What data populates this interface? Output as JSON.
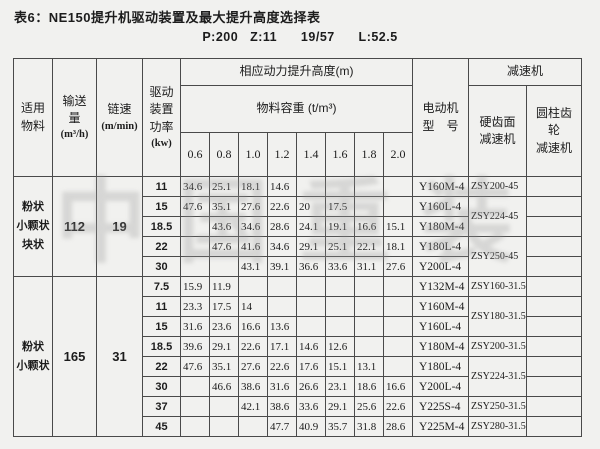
{
  "page": {
    "title": "表6：NE150提升机驱动装置及最大提升高度选择表",
    "subtitle": "P:200   Z:11      19/57      L:52.5",
    "watermark": "中国重装"
  },
  "colors": {
    "background": "#f1f1ef",
    "border": "#4a4a4a",
    "text": "#1c1c1c",
    "watermark": "#9a9a9a"
  },
  "table": {
    "headers": {
      "material": "适用\n物料",
      "capacity": "输送\n量",
      "capacity_unit": "(m³/h)",
      "chain_speed": "链速",
      "chain_speed_unit": "(m/min)",
      "drive_power": "驱动\n装置\n功率",
      "drive_power_unit": "(kw)",
      "lift_height": "相应动力提升高度(m)",
      "bulk_density": "物料容重 (t/m³)",
      "motor_model": "电动机\n型　号",
      "reducer": "减速机",
      "hard_tooth_reducer": "硬齿面\n减速机",
      "cylindrical_reducer": "圆柱齿\n轮\n减速机"
    },
    "density_values": [
      "0.6",
      "0.8",
      "1.0",
      "1.2",
      "1.4",
      "1.6",
      "1.8",
      "2.0"
    ],
    "groups": [
      {
        "material": "粉状\n小颗状\n块状",
        "capacity": "112",
        "chain_speed": "19",
        "rows": [
          {
            "power": "11",
            "heights": [
              "34.6",
              "25.1",
              "18.1",
              "14.6",
              "",
              "",
              "",
              ""
            ],
            "motor": "Y160M-4"
          },
          {
            "power": "15",
            "heights": [
              "47.6",
              "35.1",
              "27.6",
              "22.6",
              "20",
              "17.5",
              "",
              ""
            ],
            "motor": "Y160L-4"
          },
          {
            "power": "18.5",
            "heights": [
              "",
              "43.6",
              "34.6",
              "28.6",
              "24.1",
              "19.1",
              "16.6",
              "15.1"
            ],
            "motor": "Y180M-4"
          },
          {
            "power": "22",
            "heights": [
              "",
              "47.6",
              "41.6",
              "34.6",
              "29.1",
              "25.1",
              "22.1",
              "18.1"
            ],
            "motor": "Y180L-4"
          },
          {
            "power": "30",
            "heights": [
              "",
              "",
              "43.1",
              "39.1",
              "36.6",
              "33.6",
              "31.1",
              "27.6"
            ],
            "motor": "Y200L-4"
          }
        ],
        "reducers": [
          {
            "label": "ZSY200-45",
            "span": 1
          },
          {
            "label": "ZSY224-45",
            "span": 2
          },
          {
            "label": "ZSY250-45",
            "span": 2
          }
        ]
      },
      {
        "material": "粉状\n小颗状",
        "capacity": "165",
        "chain_speed": "31",
        "rows": [
          {
            "power": "7.5",
            "heights": [
              "15.9",
              "11.9",
              "",
              "",
              "",
              "",
              "",
              ""
            ],
            "motor": "Y132M-4"
          },
          {
            "power": "11",
            "heights": [
              "23.3",
              "17.5",
              "14",
              "",
              "",
              "",
              "",
              ""
            ],
            "motor": "Y160M-4"
          },
          {
            "power": "15",
            "heights": [
              "31.6",
              "23.6",
              "16.6",
              "13.6",
              "",
              "",
              "",
              ""
            ],
            "motor": "Y160L-4"
          },
          {
            "power": "18.5",
            "heights": [
              "39.6",
              "29.1",
              "22.6",
              "17.1",
              "14.6",
              "12.6",
              "",
              ""
            ],
            "motor": "Y180M-4"
          },
          {
            "power": "22",
            "heights": [
              "47.6",
              "35.1",
              "27.6",
              "22.6",
              "17.6",
              "15.1",
              "13.1",
              ""
            ],
            "motor": "Y180L-4"
          },
          {
            "power": "30",
            "heights": [
              "",
              "46.6",
              "38.6",
              "31.6",
              "26.6",
              "23.1",
              "18.6",
              "16.6"
            ],
            "motor": "Y200L-4"
          },
          {
            "power": "37",
            "heights": [
              "",
              "",
              "42.1",
              "38.6",
              "33.6",
              "29.1",
              "25.6",
              "22.6"
            ],
            "motor": "Y225S-4"
          },
          {
            "power": "45",
            "heights": [
              "",
              "",
              "",
              "47.7",
              "40.9",
              "35.7",
              "31.8",
              "28.6"
            ],
            "motor": "Y225M-4"
          }
        ],
        "reducers": [
          {
            "label": "ZSY160-31.5",
            "span": 1
          },
          {
            "label": "ZSY180-31.5",
            "span": 2
          },
          {
            "label": "ZSY200-31.5",
            "span": 1
          },
          {
            "label": "ZSY224-31.5",
            "span": 2
          },
          {
            "label": "ZSY250-31.5",
            "span": 1
          },
          {
            "label": "ZSY280-31.5",
            "span": 1
          }
        ]
      }
    ]
  }
}
